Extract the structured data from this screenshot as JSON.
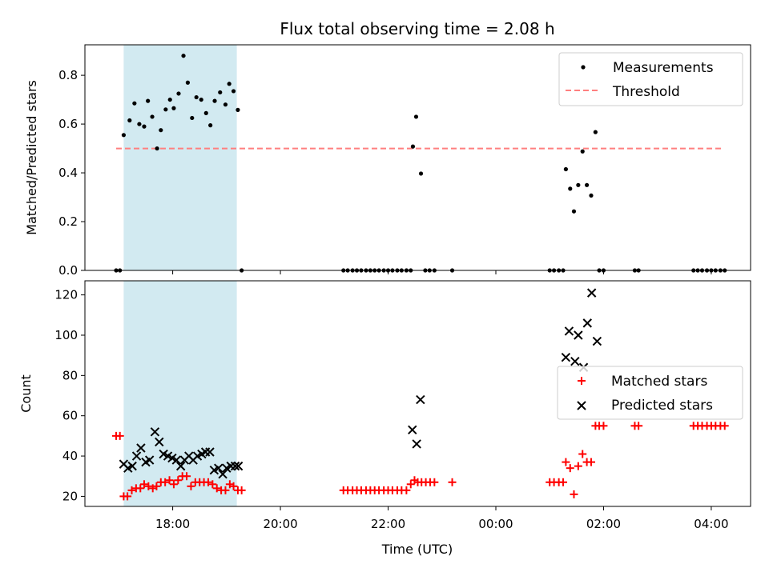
{
  "colors": {
    "measurement": "#000000",
    "threshold": "#ff7f7f",
    "matched": "#ff0000",
    "predicted": "#000000",
    "span": "#add8e6"
  },
  "chart_data": [
    {
      "type": "scatter",
      "title": "Flux total observing time = 2.08 h",
      "xlabel": "",
      "ylabel": "Matched/Predicted stars",
      "xlim": [
        -1.63,
        10.73
      ],
      "ylim": [
        0,
        0.925
      ],
      "x_unit": "hours relative to 18:00 UTC",
      "yticks": [
        "0.0",
        "0.2",
        "0.4",
        "0.6",
        "0.8"
      ],
      "highlight_span": [
        -0.91,
        1.19
      ],
      "legend": {
        "position": "top-right",
        "entries": [
          "Measurements",
          "Threshold"
        ]
      },
      "threshold": {
        "name": "Threshold",
        "y": 0.5,
        "x_range": [
          -1.05,
          10.23
        ]
      },
      "series": [
        {
          "name": "Measurements",
          "points": [
            [
              -1.05,
              0.0
            ],
            [
              -0.98,
              0.0
            ],
            [
              -0.91,
              0.555
            ],
            [
              -0.8,
              0.615
            ],
            [
              -0.71,
              0.685
            ],
            [
              -0.62,
              0.6
            ],
            [
              -0.53,
              0.59
            ],
            [
              -0.46,
              0.695
            ],
            [
              -0.38,
              0.63
            ],
            [
              -0.29,
              0.5
            ],
            [
              -0.22,
              0.575
            ],
            [
              -0.13,
              0.66
            ],
            [
              -0.05,
              0.7
            ],
            [
              0.02,
              0.665
            ],
            [
              0.11,
              0.725
            ],
            [
              0.2,
              0.88
            ],
            [
              0.28,
              0.77
            ],
            [
              0.36,
              0.625
            ],
            [
              0.44,
              0.71
            ],
            [
              0.53,
              0.7
            ],
            [
              0.62,
              0.645
            ],
            [
              0.7,
              0.595
            ],
            [
              0.78,
              0.695
            ],
            [
              0.88,
              0.73
            ],
            [
              0.98,
              0.68
            ],
            [
              1.05,
              0.765
            ],
            [
              1.13,
              0.735
            ],
            [
              1.21,
              0.658
            ],
            [
              1.28,
              0.0
            ],
            [
              3.17,
              0.0
            ],
            [
              3.25,
              0.0
            ],
            [
              3.34,
              0.0
            ],
            [
              3.42,
              0.0
            ],
            [
              3.5,
              0.0
            ],
            [
              3.59,
              0.0
            ],
            [
              3.67,
              0.0
            ],
            [
              3.75,
              0.0
            ],
            [
              3.83,
              0.0
            ],
            [
              3.92,
              0.0
            ],
            [
              4.0,
              0.0
            ],
            [
              4.08,
              0.0
            ],
            [
              4.17,
              0.0
            ],
            [
              4.25,
              0.0
            ],
            [
              4.34,
              0.0
            ],
            [
              4.42,
              0.0
            ],
            [
              4.46,
              0.508
            ],
            [
              4.52,
              0.63
            ],
            [
              4.61,
              0.397
            ],
            [
              4.69,
              0.0
            ],
            [
              4.77,
              0.0
            ],
            [
              4.86,
              0.0
            ],
            [
              5.19,
              0.0
            ],
            [
              7.0,
              0.0
            ],
            [
              7.08,
              0.0
            ],
            [
              7.17,
              0.0
            ],
            [
              7.25,
              0.0
            ],
            [
              7.3,
              0.415
            ],
            [
              7.38,
              0.335
            ],
            [
              7.45,
              0.242
            ],
            [
              7.53,
              0.35
            ],
            [
              7.61,
              0.488
            ],
            [
              7.69,
              0.35
            ],
            [
              7.77,
              0.307
            ],
            [
              7.85,
              0.567
            ],
            [
              7.92,
              0.0
            ],
            [
              8.0,
              0.0
            ],
            [
              8.58,
              0.0
            ],
            [
              8.65,
              0.0
            ],
            [
              9.67,
              0.0
            ],
            [
              9.75,
              0.0
            ],
            [
              9.83,
              0.0
            ],
            [
              9.92,
              0.0
            ],
            [
              10.0,
              0.0
            ],
            [
              10.08,
              0.0
            ],
            [
              10.17,
              0.0
            ],
            [
              10.25,
              0.0
            ]
          ]
        }
      ]
    },
    {
      "type": "scatter",
      "title": "",
      "xlabel": "Time (UTC)",
      "ylabel": "Count",
      "xlim": [
        -1.63,
        10.73
      ],
      "ylim": [
        15,
        127
      ],
      "x_unit": "hours relative to 18:00 UTC",
      "xticks": [
        {
          "x": 0,
          "label": "18:00"
        },
        {
          "x": 2,
          "label": "20:00"
        },
        {
          "x": 4,
          "label": "22:00"
        },
        {
          "x": 6,
          "label": "00:00"
        },
        {
          "x": 8,
          "label": "02:00"
        },
        {
          "x": 10,
          "label": "04:00"
        }
      ],
      "yticks": [
        "20",
        "40",
        "60",
        "80",
        "100",
        "120"
      ],
      "highlight_span": [
        -0.91,
        1.19
      ],
      "legend": {
        "position": "center-right",
        "entries": [
          "Matched stars",
          "Predicted stars"
        ]
      },
      "series": [
        {
          "name": "Matched stars",
          "points": [
            [
              -1.05,
              50
            ],
            [
              -0.98,
              50
            ],
            [
              -0.91,
              20
            ],
            [
              -0.84,
              20
            ],
            [
              -0.76,
              23
            ],
            [
              -0.68,
              24
            ],
            [
              -0.6,
              24
            ],
            [
              -0.53,
              26
            ],
            [
              -0.45,
              25
            ],
            [
              -0.37,
              24
            ],
            [
              -0.3,
              25
            ],
            [
              -0.22,
              27
            ],
            [
              -0.14,
              27
            ],
            [
              -0.06,
              28
            ],
            [
              0.02,
              26
            ],
            [
              0.1,
              28
            ],
            [
              0.18,
              30
            ],
            [
              0.26,
              30
            ],
            [
              0.34,
              25
            ],
            [
              0.42,
              27
            ],
            [
              0.5,
              27
            ],
            [
              0.58,
              27
            ],
            [
              0.66,
              27
            ],
            [
              0.74,
              26
            ],
            [
              0.82,
              24
            ],
            [
              0.9,
              23
            ],
            [
              0.98,
              23
            ],
            [
              1.06,
              26
            ],
            [
              1.13,
              25
            ],
            [
              1.21,
              23
            ],
            [
              1.28,
              23
            ],
            [
              3.17,
              23
            ],
            [
              3.25,
              23
            ],
            [
              3.34,
              23
            ],
            [
              3.42,
              23
            ],
            [
              3.5,
              23
            ],
            [
              3.59,
              23
            ],
            [
              3.67,
              23
            ],
            [
              3.75,
              23
            ],
            [
              3.83,
              23
            ],
            [
              3.92,
              23
            ],
            [
              4.0,
              23
            ],
            [
              4.08,
              23
            ],
            [
              4.17,
              23
            ],
            [
              4.25,
              23
            ],
            [
              4.34,
              23
            ],
            [
              4.42,
              26
            ],
            [
              4.49,
              28
            ],
            [
              4.55,
              27
            ],
            [
              4.62,
              27
            ],
            [
              4.7,
              27
            ],
            [
              4.78,
              27
            ],
            [
              4.86,
              27
            ],
            [
              5.19,
              27
            ],
            [
              7.0,
              27
            ],
            [
              7.08,
              27
            ],
            [
              7.17,
              27
            ],
            [
              7.25,
              27
            ],
            [
              7.3,
              37
            ],
            [
              7.38,
              34
            ],
            [
              7.45,
              21
            ],
            [
              7.53,
              35
            ],
            [
              7.61,
              41
            ],
            [
              7.69,
              37
            ],
            [
              7.77,
              37
            ],
            [
              7.85,
              55
            ],
            [
              7.92,
              55
            ],
            [
              8.0,
              55
            ],
            [
              8.58,
              55
            ],
            [
              8.65,
              55
            ],
            [
              9.67,
              55
            ],
            [
              9.75,
              55
            ],
            [
              9.83,
              55
            ],
            [
              9.92,
              55
            ],
            [
              10.0,
              55
            ],
            [
              10.08,
              55
            ],
            [
              10.17,
              55
            ],
            [
              10.25,
              55
            ]
          ]
        },
        {
          "name": "Predicted stars",
          "points": [
            [
              -0.91,
              36
            ],
            [
              -0.83,
              34
            ],
            [
              -0.75,
              35
            ],
            [
              -0.67,
              40
            ],
            [
              -0.59,
              44
            ],
            [
              -0.5,
              37
            ],
            [
              -0.43,
              38
            ],
            [
              -0.33,
              52
            ],
            [
              -0.25,
              47
            ],
            [
              -0.17,
              41
            ],
            [
              -0.09,
              40
            ],
            [
              -0.01,
              39
            ],
            [
              0.07,
              38
            ],
            [
              0.15,
              35
            ],
            [
              0.22,
              38
            ],
            [
              0.3,
              40
            ],
            [
              0.38,
              38
            ],
            [
              0.46,
              40
            ],
            [
              0.54,
              41
            ],
            [
              0.61,
              42
            ],
            [
              0.69,
              42
            ],
            [
              0.77,
              33
            ],
            [
              0.85,
              34
            ],
            [
              0.93,
              31
            ],
            [
              1.0,
              34
            ],
            [
              1.08,
              35
            ],
            [
              1.16,
              35
            ],
            [
              1.22,
              35
            ],
            [
              4.45,
              53
            ],
            [
              4.53,
              46
            ],
            [
              4.6,
              68
            ],
            [
              7.3,
              89
            ],
            [
              7.36,
              102
            ],
            [
              7.47,
              87
            ],
            [
              7.53,
              100
            ],
            [
              7.63,
              84
            ],
            [
              7.7,
              106
            ],
            [
              7.78,
              121
            ],
            [
              7.88,
              97
            ]
          ]
        }
      ]
    }
  ]
}
